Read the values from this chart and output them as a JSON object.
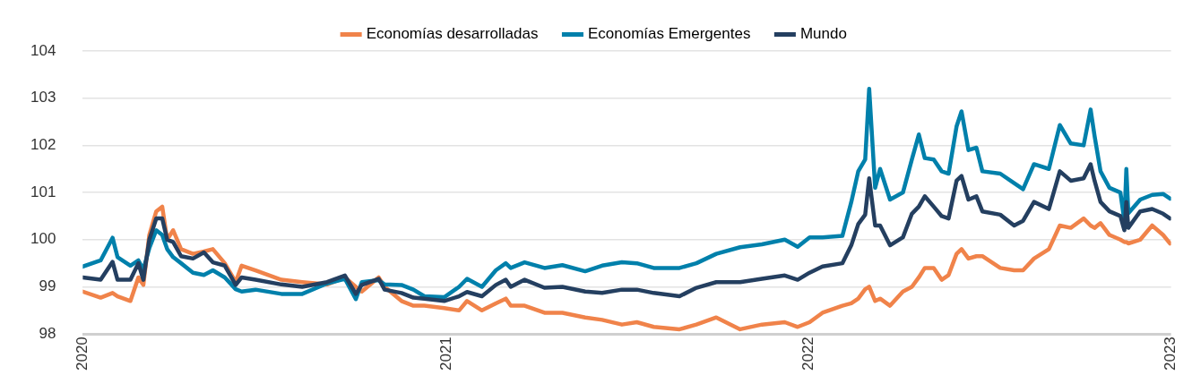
{
  "chart_data": {
    "type": "line",
    "legend": "top",
    "grid": "y",
    "xlim": [
      "2020-01-01",
      "2023-01-01"
    ],
    "xticks": [
      "2020",
      "2021",
      "2022",
      "2023"
    ],
    "ylim": [
      98,
      104
    ],
    "yticks": [
      98,
      99,
      100,
      101,
      102,
      103,
      104
    ],
    "x": [
      "2020-01-01",
      "2020-01-19",
      "2020-01-31",
      "2020-02-05",
      "2020-02-18",
      "2020-02-26",
      "2020-03-02",
      "2020-03-08",
      "2020-03-15",
      "2020-03-21",
      "2020-03-26",
      "2020-04-01",
      "2020-04-09",
      "2020-04-21",
      "2020-05-02",
      "2020-05-11",
      "2020-05-23",
      "2020-06-03",
      "2020-06-09",
      "2020-06-23",
      "2020-07-19",
      "2020-08-09",
      "2020-09-03",
      "2020-09-21",
      "2020-10-02",
      "2020-10-08",
      "2020-10-25",
      "2020-10-31",
      "2020-11-17",
      "2020-11-29",
      "2020-12-10",
      "2020-12-30",
      "2021-01-14",
      "2021-01-22",
      "2021-02-06",
      "2021-02-20",
      "2021-03-02",
      "2021-03-07",
      "2021-03-21",
      "2021-04-10",
      "2021-04-28",
      "2021-05-21",
      "2021-06-07",
      "2021-06-27",
      "2021-07-12",
      "2021-07-29",
      "2021-08-24",
      "2021-09-10",
      "2021-09-30",
      "2021-10-24",
      "2021-11-15",
      "2021-12-08",
      "2021-12-21",
      "2022-01-02",
      "2022-01-15",
      "2022-02-04",
      "2022-02-13",
      "2022-02-20",
      "2022-02-27",
      "2022-03-03",
      "2022-03-09",
      "2022-03-14",
      "2022-03-24",
      "2022-04-06",
      "2022-04-15",
      "2022-04-22",
      "2022-04-28",
      "2022-05-07",
      "2022-05-15",
      "2022-05-22",
      "2022-05-30",
      "2022-06-04",
      "2022-06-11",
      "2022-06-19",
      "2022-06-25",
      "2022-07-13",
      "2022-07-27",
      "2022-08-05",
      "2022-08-16",
      "2022-08-31",
      "2022-09-11",
      "2022-09-22",
      "2022-10-05",
      "2022-10-12",
      "2022-10-16",
      "2022-10-22",
      "2022-10-31",
      "2022-11-11",
      "2022-11-15",
      "2022-11-17",
      "2022-11-19",
      "2022-12-01",
      "2022-12-13",
      "2022-12-24",
      "2022-12-31"
    ],
    "series": [
      {
        "name": "Economías desarrolladas",
        "color": "#f0834a",
        "values": [
          98.9,
          98.77,
          98.87,
          98.8,
          98.7,
          99.2,
          99.04,
          100.1,
          100.6,
          100.7,
          100.0,
          100.2,
          99.8,
          99.7,
          99.75,
          99.8,
          99.5,
          99.1,
          99.45,
          99.35,
          99.15,
          99.1,
          99.05,
          99.2,
          99.0,
          98.9,
          99.2,
          99.0,
          98.7,
          98.6,
          98.6,
          98.55,
          98.5,
          98.7,
          98.5,
          98.65,
          98.75,
          98.6,
          98.6,
          98.45,
          98.45,
          98.35,
          98.3,
          98.2,
          98.25,
          98.15,
          98.1,
          98.2,
          98.35,
          98.1,
          98.2,
          98.25,
          98.15,
          98.25,
          98.45,
          98.6,
          98.65,
          98.75,
          98.95,
          99.0,
          98.7,
          98.75,
          98.6,
          98.9,
          99.0,
          99.2,
          99.4,
          99.4,
          99.15,
          99.25,
          99.7,
          99.8,
          99.6,
          99.65,
          99.65,
          99.4,
          99.35,
          99.35,
          99.6,
          99.8,
          100.3,
          100.25,
          100.45,
          100.3,
          100.25,
          100.35,
          100.1,
          100.0,
          99.95,
          99.95,
          99.92,
          100.0,
          100.3,
          100.1,
          99.92
        ]
      },
      {
        "name": "Economías Emergentes",
        "color": "#0080ab",
        "values": [
          99.43,
          99.56,
          100.04,
          99.63,
          99.45,
          99.56,
          99.37,
          99.82,
          100.2,
          100.1,
          99.8,
          99.63,
          99.5,
          99.3,
          99.25,
          99.35,
          99.2,
          98.95,
          98.9,
          98.94,
          98.85,
          98.85,
          99.07,
          99.17,
          98.74,
          99.1,
          99.14,
          99.05,
          99.04,
          98.94,
          98.8,
          98.78,
          99.0,
          99.17,
          99.0,
          99.35,
          99.5,
          99.4,
          99.52,
          99.4,
          99.46,
          99.33,
          99.45,
          99.52,
          99.5,
          99.4,
          99.4,
          99.5,
          99.7,
          99.84,
          99.9,
          100.0,
          99.85,
          100.05,
          100.05,
          100.08,
          100.8,
          101.45,
          101.7,
          103.2,
          101.1,
          101.5,
          100.85,
          101.0,
          101.7,
          102.23,
          101.73,
          101.7,
          101.45,
          101.4,
          102.4,
          102.72,
          101.9,
          101.95,
          101.45,
          101.4,
          101.2,
          101.07,
          101.6,
          101.5,
          102.43,
          102.04,
          102.0,
          102.76,
          102.2,
          101.45,
          101.1,
          101.0,
          100.4,
          101.5,
          100.56,
          100.85,
          100.95,
          100.97,
          100.87
        ]
      },
      {
        "name": "Mundo",
        "color": "#243f60",
        "values": [
          99.2,
          99.15,
          99.53,
          99.15,
          99.15,
          99.5,
          99.15,
          100.0,
          100.45,
          100.45,
          100.0,
          99.95,
          99.65,
          99.6,
          99.73,
          99.52,
          99.45,
          99.04,
          99.2,
          99.15,
          99.05,
          99.0,
          99.1,
          99.24,
          98.85,
          99.04,
          99.17,
          98.94,
          98.87,
          98.77,
          98.75,
          98.7,
          98.8,
          98.89,
          98.8,
          99.04,
          99.15,
          99.0,
          99.15,
          98.98,
          99.0,
          98.9,
          98.87,
          98.94,
          98.94,
          98.87,
          98.8,
          98.98,
          99.1,
          99.1,
          99.17,
          99.24,
          99.15,
          99.3,
          99.43,
          99.5,
          99.88,
          100.33,
          100.53,
          101.3,
          100.3,
          100.3,
          99.88,
          100.05,
          100.55,
          100.7,
          100.92,
          100.7,
          100.5,
          100.45,
          101.25,
          101.35,
          100.85,
          100.92,
          100.6,
          100.53,
          100.3,
          100.4,
          100.8,
          100.65,
          101.45,
          101.25,
          101.3,
          101.6,
          101.25,
          100.8,
          100.6,
          100.5,
          100.2,
          100.8,
          100.25,
          100.6,
          100.65,
          100.55,
          100.45
        ]
      }
    ]
  }
}
